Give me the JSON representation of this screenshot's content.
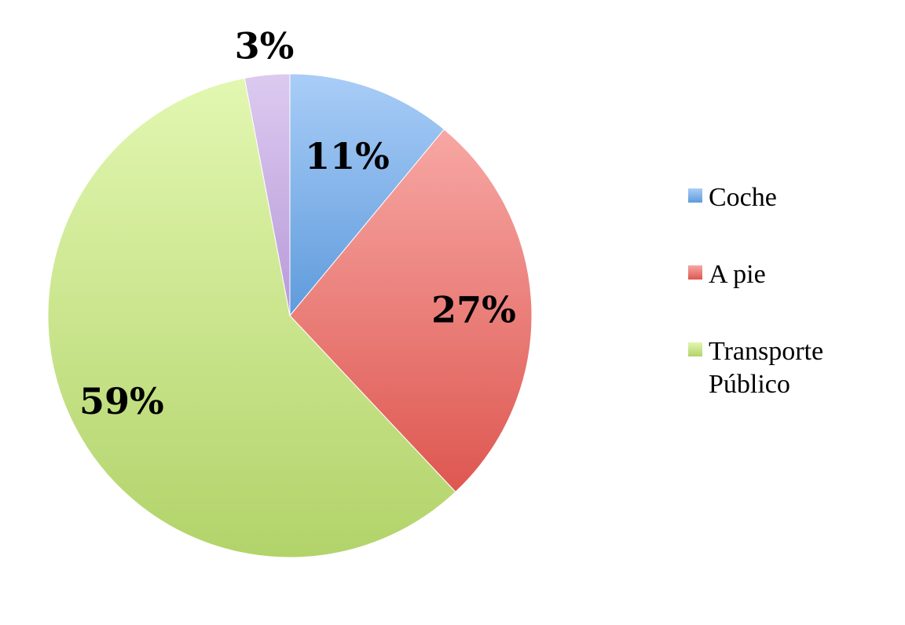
{
  "chart_data": {
    "type": "pie",
    "title": "",
    "legend_position": "right",
    "slices": [
      {
        "label": "Coche",
        "value": 11,
        "value_label": "11%",
        "color": "#6ea5e5"
      },
      {
        "label": "A pie",
        "value": 27,
        "value_label": "27%",
        "color": "#e56c68"
      },
      {
        "label": "Transporte Público",
        "label_lines": [
          "Transporte",
          "Público"
        ],
        "value": 59,
        "value_label": "59%",
        "color": "#c3e08e"
      },
      {
        "label": "",
        "value": 3,
        "value_label": "3%",
        "color": "#c8b0e0"
      }
    ]
  }
}
